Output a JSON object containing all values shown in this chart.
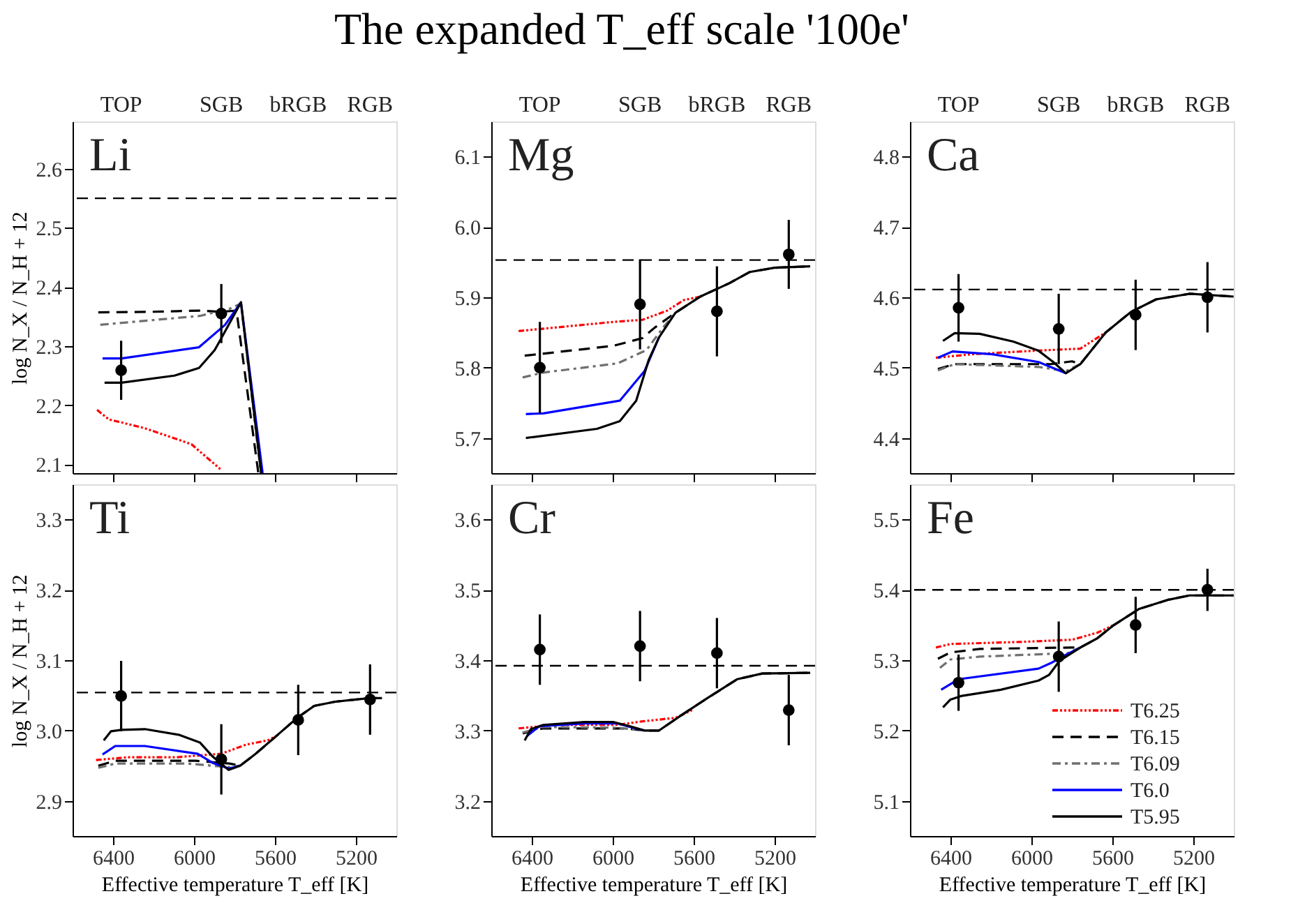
{
  "chart_data": [
    {
      "type": "line",
      "annotations": [
        "Li",
        "TOP",
        "SGB",
        "bRGB",
        "RGB"
      ],
      "ylabel": "log N_X / N_H + 12",
      "xlim": [
        6600,
        5000
      ],
      "xticks": [
        6400,
        6000,
        5600,
        5200
      ],
      "ylim": [
        2.085,
        2.68
      ],
      "yticks": [
        2.1,
        2.2,
        2.3,
        2.4,
        2.5,
        2.6
      ],
      "tick_labels": "y",
      "ref_lines": [
        {
          "axis": "y",
          "value": 2.55,
          "color": "#000000",
          "line_style": "dashed"
        }
      ],
      "series": [
        {
          "type": "line",
          "color": "#ff0000",
          "line_style": "dashdotdot",
          "x": [
            6479,
            6421,
            6243,
            6013,
            5867
          ],
          "values": [
            2.192,
            2.176,
            2.161,
            2.134,
            2.091
          ]
        },
        {
          "type": "line",
          "color": "#000000",
          "line_style": "dashed",
          "x": [
            6473,
            6200,
            5971,
            5870,
            5790,
            5682
          ],
          "values": [
            2.357,
            2.358,
            2.36,
            2.358,
            2.36,
            2.085
          ]
        },
        {
          "type": "line",
          "color": "#707070",
          "line_style": "dashdot",
          "x": [
            6463,
            5971,
            5825,
            5768,
            5670
          ],
          "values": [
            2.336,
            2.351,
            2.363,
            2.372,
            2.085
          ]
        },
        {
          "type": "line",
          "color": "#0000ff",
          "line_style": "solid",
          "x": [
            6452,
            6358,
            5975,
            5846,
            5768,
            5661
          ],
          "values": [
            2.279,
            2.279,
            2.298,
            2.336,
            2.374,
            2.085
          ]
        },
        {
          "type": "line",
          "color": "#000000",
          "line_style": "solid",
          "x": [
            6442,
            6358,
            6097,
            5975,
            5898,
            5867,
            5768,
            5668
          ],
          "values": [
            2.238,
            2.238,
            2.25,
            2.263,
            2.293,
            2.312,
            2.374,
            2.085
          ]
        },
        {
          "type": "scatter",
          "color": "#000000",
          "marker": "circle",
          "x": [
            6360,
            5865
          ],
          "values": [
            2.259,
            2.355
          ],
          "errors": [
            0.05,
            0.05
          ]
        }
      ]
    },
    {
      "type": "line",
      "title": "The expanded T_eff scale '100e'",
      "annotations": [
        "Mg",
        "TOP",
        "SGB",
        "bRGB",
        "RGB"
      ],
      "xlim": [
        6600,
        5000
      ],
      "xticks": [
        6400,
        6000,
        5600,
        5200
      ],
      "ylim": [
        5.65,
        6.15
      ],
      "yticks": [
        5.7,
        5.8,
        5.9,
        {
          "value": 6.0,
          "label": "6.0"
        },
        6.1
      ],
      "tick_labels": "y",
      "ref_lines": [
        {
          "axis": "y",
          "value": 5.953,
          "color": "#000000",
          "line_style": "dashed"
        }
      ],
      "series": [
        {
          "type": "line",
          "color": "#ff0000",
          "line_style": "dashdotdot",
          "x": [
            6465,
            5996,
            5853,
            5731,
            5649,
            5567
          ],
          "values": [
            5.852,
            5.865,
            5.868,
            5.881,
            5.896,
            5.901
          ]
        },
        {
          "type": "line",
          "color": "#000000",
          "line_style": "dashed",
          "x": [
            6435,
            5996,
            5853,
            5792,
            5690,
            5567,
            5424,
            5322,
            5200,
            5024
          ],
          "values": [
            5.817,
            5.831,
            5.842,
            5.857,
            5.878,
            5.901,
            5.92,
            5.936,
            5.942,
            5.944
          ]
        },
        {
          "type": "line",
          "color": "#707070",
          "line_style": "dashdot",
          "x": [
            6445,
            6343,
            5976,
            5833,
            5751,
            5690
          ],
          "values": [
            5.786,
            5.793,
            5.806,
            5.825,
            5.857,
            5.878
          ]
        },
        {
          "type": "line",
          "color": "#0000ff",
          "line_style": "solid",
          "x": [
            6429,
            6343,
            5965,
            5843,
            5771
          ],
          "values": [
            5.734,
            5.735,
            5.753,
            5.795,
            5.843
          ]
        },
        {
          "type": "line",
          "color": "#000000",
          "line_style": "solid",
          "x": [
            6429,
            6078,
            5965,
            5884,
            5822,
            5771,
            5690,
            5567,
            5424,
            5322,
            5200,
            5024
          ],
          "values": [
            5.7,
            5.713,
            5.724,
            5.753,
            5.811,
            5.843,
            5.878,
            5.901,
            5.92,
            5.936,
            5.942,
            5.944
          ]
        },
        {
          "type": "scatter",
          "color": "#000000",
          "marker": "circle",
          "x": [
            6360,
            5865,
            5485,
            5130
          ],
          "values": [
            5.8,
            5.89,
            5.88,
            5.961
          ],
          "errors": [
            0.065,
            0.064,
            0.064,
            0.049
          ]
        }
      ]
    },
    {
      "type": "line",
      "annotations": [
        "Ca",
        "TOP",
        "SGB",
        "bRGB",
        "RGB"
      ],
      "xlim": [
        6600,
        5000
      ],
      "xticks": [
        6400,
        6000,
        5600,
        5200
      ],
      "ylim": [
        4.35,
        4.85
      ],
      "yticks": [
        4.4,
        4.5,
        4.6,
        4.7,
        4.8
      ],
      "tick_labels": "y",
      "ref_lines": [
        {
          "axis": "y",
          "value": 4.611,
          "color": "#000000",
          "line_style": "dashed"
        }
      ],
      "series": [
        {
          "type": "line",
          "color": "#ff0000",
          "line_style": "dashdotdot",
          "x": [
            6472,
            6296,
            5986,
            5758,
            5633
          ],
          "values": [
            4.514,
            4.519,
            4.524,
            4.527,
            4.55
          ]
        },
        {
          "type": "line",
          "color": "#000000",
          "line_style": "dashed",
          "x": [
            6462,
            6379,
            5903,
            5799,
            5758,
            5633,
            5509,
            5384,
            5219,
            5001
          ],
          "values": [
            4.498,
            4.505,
            4.505,
            4.509,
            4.505,
            4.55,
            4.579,
            4.597,
            4.605,
            4.601
          ]
        },
        {
          "type": "line",
          "color": "#707070",
          "line_style": "dashdot",
          "x": [
            6462,
            6379,
            5965,
            5830,
            5758
          ],
          "values": [
            4.496,
            4.505,
            4.501,
            4.495,
            4.505
          ]
        },
        {
          "type": "line",
          "color": "#0000ff",
          "line_style": "solid",
          "x": [
            6462,
            6390,
            6193,
            5965,
            5830
          ],
          "values": [
            4.514,
            4.523,
            4.519,
            4.508,
            4.492
          ]
        },
        {
          "type": "line",
          "color": "#000000",
          "line_style": "solid",
          "x": [
            6437,
            6379,
            6255,
            6089,
            5965,
            5892,
            5830,
            5758,
            5633,
            5509,
            5384,
            5219,
            5001
          ],
          "values": [
            4.538,
            4.549,
            4.548,
            4.537,
            4.524,
            4.508,
            4.492,
            4.505,
            4.55,
            4.579,
            4.597,
            4.605,
            4.601
          ]
        },
        {
          "type": "scatter",
          "color": "#000000",
          "marker": "circle",
          "x": [
            6360,
            5865,
            5485,
            5130
          ],
          "values": [
            4.585,
            4.555,
            4.575,
            4.6
          ],
          "errors": [
            0.048,
            0.05,
            0.05,
            0.05
          ]
        }
      ]
    },
    {
      "type": "line",
      "annotations": [
        "Ti"
      ],
      "ylabel": "log N_X / N_H + 12",
      "xlabel": "Effective temperature T_eff [K]",
      "xlim": [
        6600,
        5000
      ],
      "xticks": [
        6400,
        6000,
        5600,
        5200
      ],
      "ylim": [
        2.85,
        3.35
      ],
      "yticks": [
        2.9,
        {
          "value": 3.0,
          "label": "3.0"
        },
        3.1,
        3.2,
        3.3
      ],
      "ref_lines": [
        {
          "axis": "y",
          "value": 3.054,
          "color": "#000000",
          "line_style": "dashed"
        }
      ],
      "series": [
        {
          "type": "line",
          "color": "#ff0000",
          "line_style": "dashdotdot",
          "x": [
            6484,
            6327,
            6086,
            5866,
            5741,
            5636,
            5594
          ],
          "values": [
            2.958,
            2.962,
            2.962,
            2.967,
            2.98,
            2.986,
            2.992
          ]
        },
        {
          "type": "line",
          "color": "#000000",
          "line_style": "dashed",
          "x": [
            6473,
            6389,
            5992,
            5825,
            5772,
            5699,
            5594,
            5490,
            5406,
            5302,
            5134,
            5071
          ],
          "values": [
            2.95,
            2.957,
            2.957,
            2.953,
            2.95,
            2.966,
            2.992,
            3.018,
            3.035,
            3.041,
            3.046,
            3.046
          ]
        },
        {
          "type": "line",
          "color": "#707070",
          "line_style": "dashdot",
          "x": [
            6473,
            6389,
            6034,
            5829,
            5772
          ],
          "values": [
            2.947,
            2.953,
            2.953,
            2.948,
            2.95
          ]
        },
        {
          "type": "line",
          "color": "#0000ff",
          "line_style": "solid",
          "x": [
            6452,
            6389,
            6243,
            5982,
            5908,
            5829,
            5772
          ],
          "values": [
            2.966,
            2.978,
            2.978,
            2.967,
            2.954,
            2.946,
            2.95
          ]
        },
        {
          "type": "line",
          "color": "#000000",
          "line_style": "solid",
          "x": [
            6446,
            6410,
            6358,
            6243,
            6076,
            5971,
            5908,
            5829,
            5772,
            5699,
            5594,
            5490,
            5406,
            5302,
            5134,
            5071
          ],
          "values": [
            2.986,
            2.999,
            3.001,
            3.002,
            2.994,
            2.983,
            2.963,
            2.944,
            2.95,
            2.966,
            2.992,
            3.018,
            3.035,
            3.041,
            3.046,
            3.046
          ]
        },
        {
          "type": "scatter",
          "color": "#000000",
          "marker": "circle",
          "x": [
            6360,
            5865,
            5485,
            5130
          ],
          "values": [
            3.049,
            2.959,
            3.015,
            3.044
          ],
          "errors": [
            0.05,
            0.05,
            0.05,
            0.05
          ]
        }
      ]
    },
    {
      "type": "line",
      "annotations": [
        "Cr"
      ],
      "xlabel": "Effective temperature T_eff [K]",
      "xlim": [
        6600,
        5000
      ],
      "xticks": [
        6400,
        6000,
        5600,
        5200
      ],
      "ylim": [
        3.15,
        3.65
      ],
      "yticks": [
        3.2,
        3.3,
        3.4,
        3.5,
        3.6
      ],
      "ref_lines": [
        {
          "axis": "y",
          "value": 3.392,
          "color": "#000000",
          "line_style": "dashed"
        }
      ],
      "series": [
        {
          "type": "line",
          "color": "#ff0000",
          "line_style": "dashdotdot",
          "x": [
            6465,
            6282,
            5976,
            5853,
            5690,
            5608
          ],
          "values": [
            3.303,
            3.308,
            3.308,
            3.313,
            3.318,
            3.329
          ]
        },
        {
          "type": "line",
          "color": "#000000",
          "line_style": "dashed",
          "x": [
            6445,
            6343,
            5935,
            5843,
            5771,
            5649,
            5527,
            5384,
            5261,
            5024
          ],
          "values": [
            3.296,
            3.303,
            3.303,
            3.3,
            3.3,
            3.324,
            3.347,
            3.373,
            3.381,
            3.382
          ]
        },
        {
          "type": "line",
          "color": "#707070",
          "line_style": "dashdot",
          "x": [
            6445,
            6343,
            5976,
            5843
          ],
          "values": [
            3.297,
            3.305,
            3.304,
            3.3
          ]
        },
        {
          "type": "line",
          "color": "#0000ff",
          "line_style": "solid",
          "x": [
            6424,
            6363,
            6139,
            5976,
            5914,
            5843
          ],
          "values": [
            3.292,
            3.306,
            3.31,
            3.31,
            3.305,
            3.3
          ]
        },
        {
          "type": "line",
          "color": "#000000",
          "line_style": "solid",
          "x": [
            6435,
            6404,
            6343,
            6139,
            5996,
            5914,
            5843,
            5771,
            5649,
            5527,
            5384,
            5261,
            5024
          ],
          "values": [
            3.286,
            3.302,
            3.308,
            3.312,
            3.312,
            3.306,
            3.3,
            3.3,
            3.324,
            3.347,
            3.373,
            3.381,
            3.382
          ]
        },
        {
          "type": "scatter",
          "color": "#000000",
          "marker": "circle",
          "x": [
            6360,
            5865,
            5485,
            5130
          ],
          "values": [
            3.415,
            3.42,
            3.41,
            3.329
          ],
          "errors": [
            0.05,
            0.05,
            0.05,
            0.05
          ]
        }
      ]
    },
    {
      "type": "line",
      "annotations": [
        "Fe"
      ],
      "xlabel": "Effective temperature T_eff [K]",
      "xlim": [
        6600,
        5000
      ],
      "xticks": [
        6400,
        6000,
        5600,
        5200
      ],
      "ylim": [
        5.05,
        5.55
      ],
      "yticks": [
        5.1,
        5.2,
        5.3,
        5.4,
        5.5
      ],
      "legend": "bottom right",
      "ref_lines": [
        {
          "axis": "y",
          "value": 5.4,
          "color": "#000000",
          "line_style": "dashed"
        }
      ],
      "series": [
        {
          "type": "line",
          "name": "T6.25",
          "color": "#ff0000",
          "line_style": "dashdotdot",
          "x": [
            6472,
            6400,
            6048,
            5799,
            5675,
            5592
          ],
          "values": [
            5.318,
            5.323,
            5.326,
            5.329,
            5.339,
            5.35
          ]
        },
        {
          "type": "line",
          "name": "T6.15",
          "color": "#000000",
          "line_style": "dashed",
          "x": [
            6462,
            6400,
            6255,
            5799,
            5758,
            5675,
            5592,
            5467,
            5322,
            5219,
            5001
          ],
          "values": [
            5.302,
            5.311,
            5.316,
            5.318,
            5.318,
            5.331,
            5.35,
            5.373,
            5.386,
            5.392,
            5.392
          ]
        },
        {
          "type": "line",
          "name": "T6.09",
          "color": "#707070",
          "line_style": "dashdot",
          "x": [
            6452,
            6400,
            6255,
            5820,
            5758
          ],
          "values": [
            5.289,
            5.301,
            5.305,
            5.31,
            5.318
          ]
        },
        {
          "type": "line",
          "name": "T6.0",
          "color": "#0000ff",
          "line_style": "solid",
          "x": [
            6446,
            6359,
            5965,
            5903,
            5840,
            5758
          ],
          "values": [
            5.258,
            5.273,
            5.288,
            5.296,
            5.306,
            5.318
          ]
        },
        {
          "type": "line",
          "name": "T5.95",
          "color": "#000000",
          "line_style": "solid",
          "x": [
            6437,
            6400,
            6348,
            6151,
            5965,
            5913,
            5861,
            5758,
            5675,
            5592,
            5467,
            5322,
            5219,
            5001
          ],
          "values": [
            5.233,
            5.244,
            5.249,
            5.258,
            5.271,
            5.279,
            5.299,
            5.318,
            5.331,
            5.35,
            5.373,
            5.386,
            5.392,
            5.392
          ]
        },
        {
          "type": "scatter",
          "color": "#000000",
          "marker": "circle",
          "x": [
            6360,
            5865,
            5485,
            5130
          ],
          "values": [
            5.268,
            5.305,
            5.35,
            5.4
          ],
          "errors": [
            0.04,
            0.05,
            0.04,
            0.03
          ]
        }
      ]
    }
  ]
}
